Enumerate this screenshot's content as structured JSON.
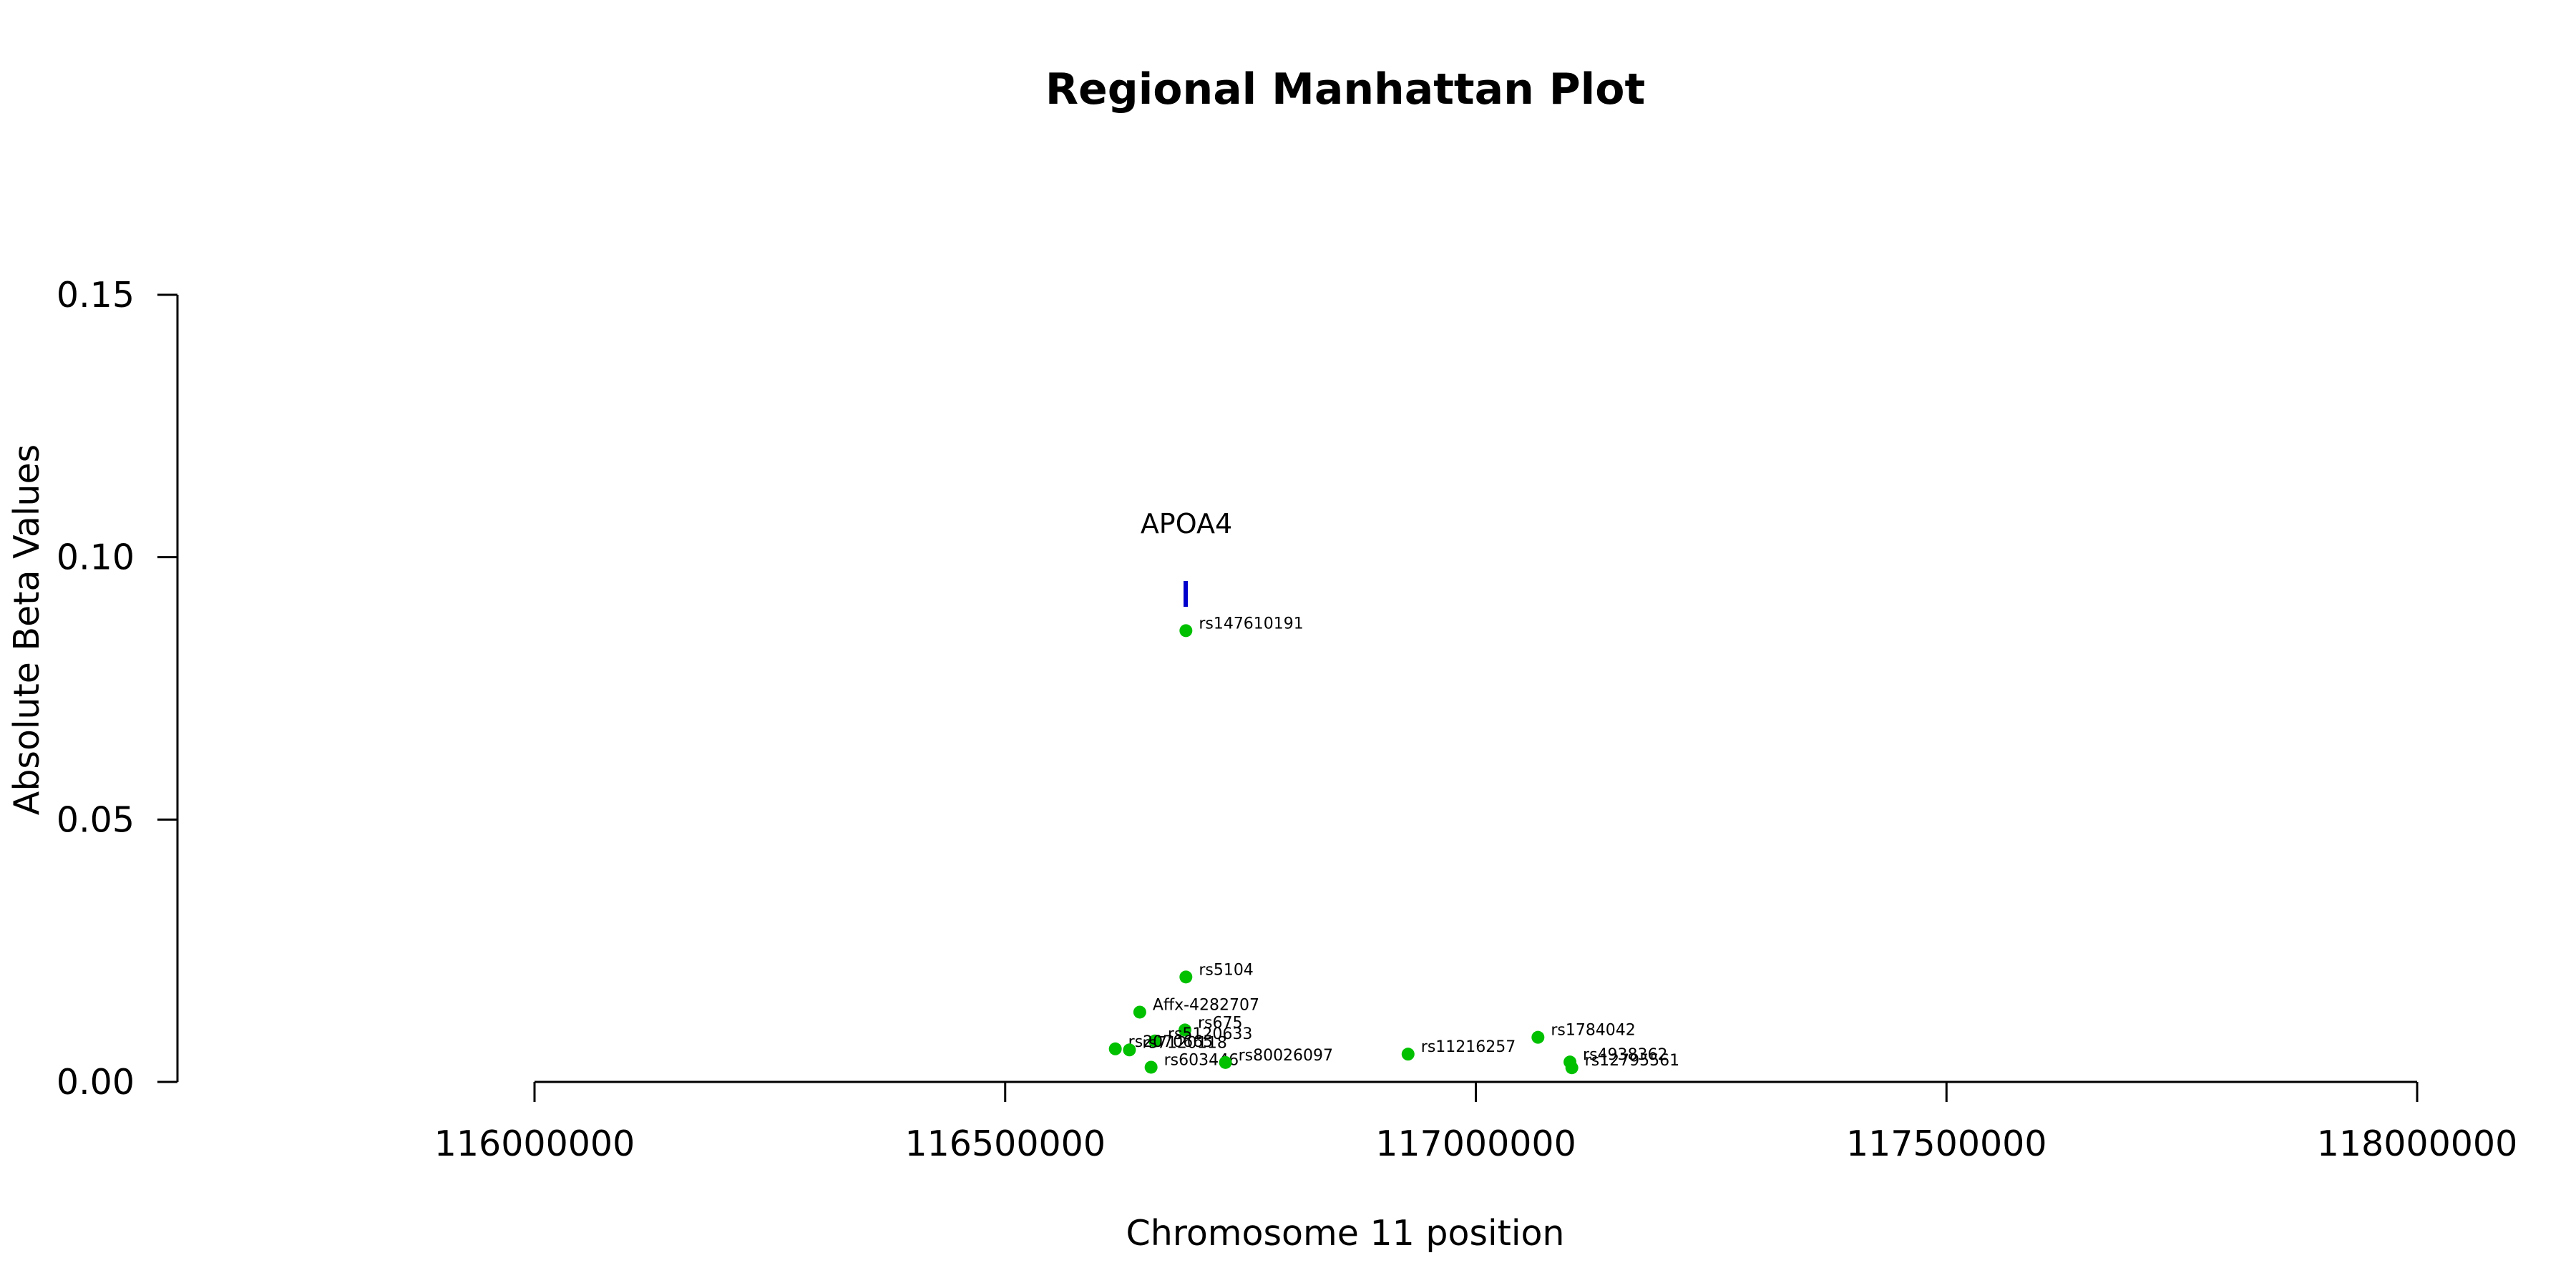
{
  "chart_data": {
    "type": "scatter",
    "title": "Regional Manhattan Plot",
    "xlabel": "Chromosome 11 position",
    "ylabel": "Absolute Beta Values",
    "xlim": [
      116000000,
      118000000
    ],
    "ylim": [
      0,
      0.15
    ],
    "x_ticks": [
      "116000000",
      "116500000",
      "117000000",
      "117500000",
      "118000000"
    ],
    "y_ticks": [
      "0.00",
      "0.05",
      "0.10",
      "0.15"
    ],
    "grid": false,
    "point_color": "#00c000",
    "gene_color": "#0000cc",
    "points": [
      {
        "label": "rs147610191",
        "x": 116692000,
        "y": 0.086
      },
      {
        "label": "rs5104",
        "x": 116692000,
        "y": 0.02
      },
      {
        "label": "Affx-4282707",
        "x": 116643000,
        "y": 0.0133
      },
      {
        "label": "rs675",
        "x": 116691000,
        "y": 0.0099
      },
      {
        "label": "rs5120633",
        "x": 116659000,
        "y": 0.0078
      },
      {
        "label": "rs2070665",
        "x": 116617000,
        "y": 0.0063
      },
      {
        "label": "rs7120118",
        "x": 116632000,
        "y": 0.0061
      },
      {
        "label": "rs603446",
        "x": 116655000,
        "y": 0.0028
      },
      {
        "label": "rs80026097",
        "x": 116734000,
        "y": 0.0037
      },
      {
        "label": "rs11216257",
        "x": 116928000,
        "y": 0.0053
      },
      {
        "label": "rs1784042",
        "x": 117066000,
        "y": 0.0085
      },
      {
        "label": "rs4938362",
        "x": 117100000,
        "y": 0.0038
      },
      {
        "label": "rs12795561",
        "x": 117102000,
        "y": 0.0027
      }
    ],
    "genes": [
      {
        "name": "APOA4",
        "start": 116691000,
        "end": 116694000,
        "y": 0.093
      }
    ]
  }
}
